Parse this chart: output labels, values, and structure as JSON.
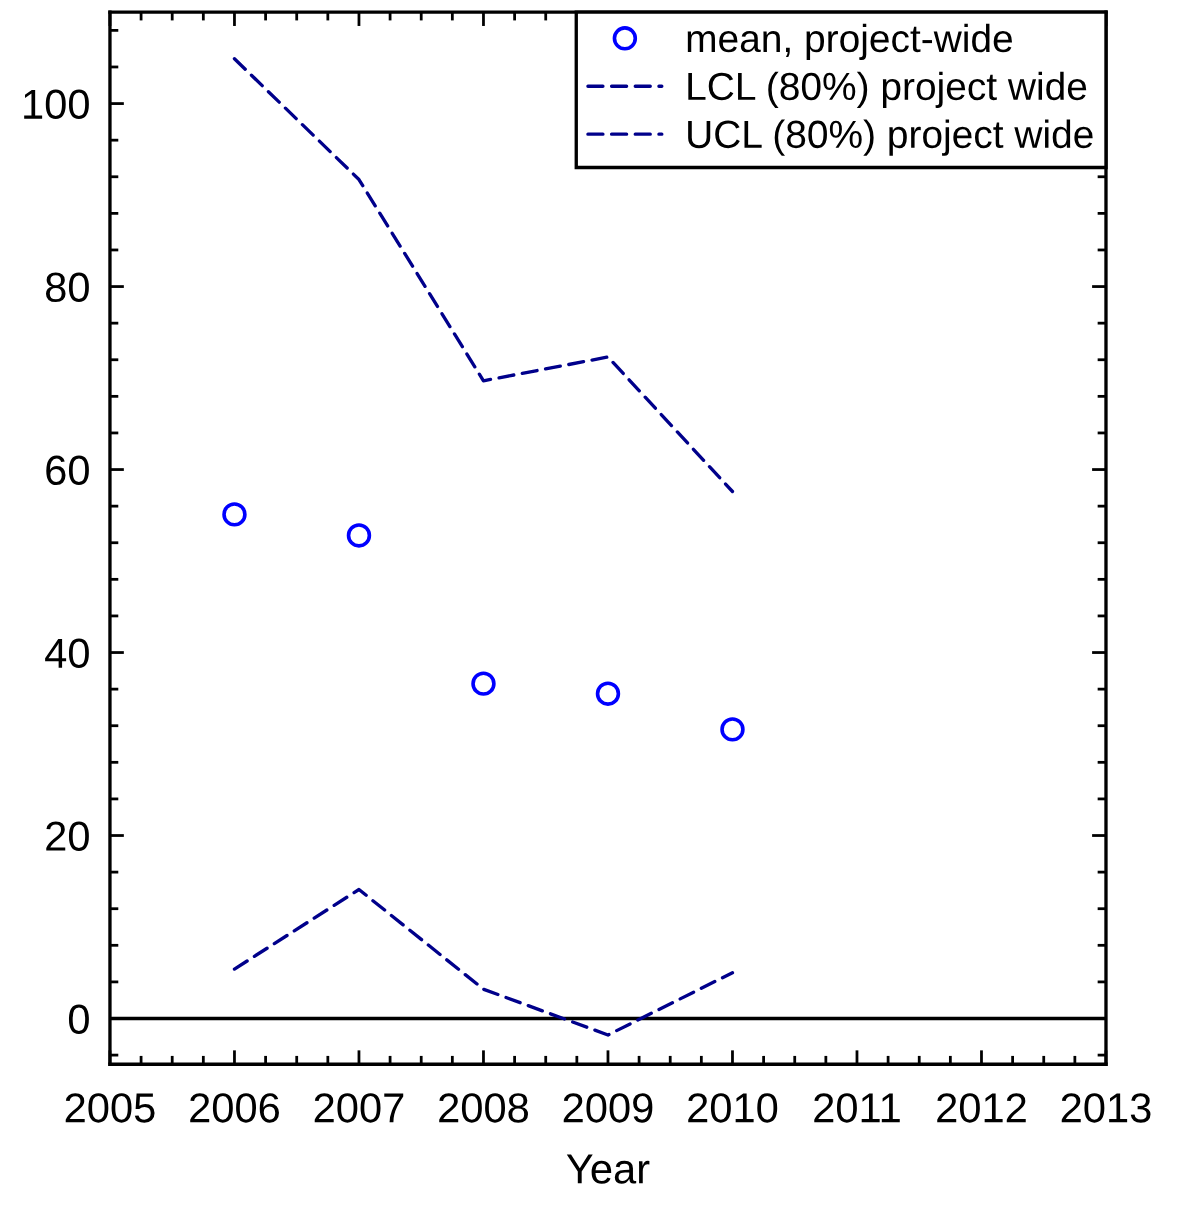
{
  "chart_data": {
    "type": "scatter",
    "xlabel": "Year",
    "x": [
      2006,
      2007,
      2008,
      2009,
      2010
    ],
    "series": [
      {
        "name": "mean, project-wide",
        "marker": "circle",
        "color": "#0000ff",
        "values": [
          55.1,
          52.8,
          36.6,
          35.5,
          31.6
        ]
      },
      {
        "name": "LCL (80%) project wide",
        "type": "line",
        "marker": "none",
        "line_style": "dashed",
        "color": "#00008b",
        "values": [
          5.4,
          14.1,
          3.2,
          -1.8,
          5.0
        ]
      },
      {
        "name": "UCL (80%) project wide",
        "type": "line",
        "marker": "none",
        "line_style": "dashed",
        "color": "#00008b",
        "values": [
          104.9,
          91.7,
          69.7,
          72.3,
          57.6
        ]
      }
    ],
    "xlim": [
      2005,
      2013
    ],
    "xticks": [
      2005,
      2006,
      2007,
      2008,
      2009,
      2010,
      2011,
      2012,
      2013
    ],
    "ylim": [
      -5,
      110
    ],
    "yticks": [
      0,
      20,
      40,
      60,
      80,
      100
    ],
    "ref_lines": [
      {
        "axis": "y",
        "value": 0,
        "color": "#000000"
      }
    ],
    "legend": "top right"
  }
}
